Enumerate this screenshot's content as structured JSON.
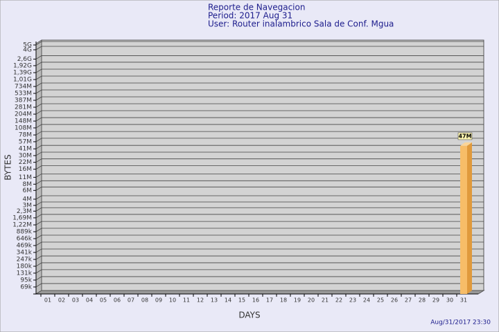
{
  "chart_data": {
    "type": "bar",
    "title": "Reporte de Navegacion",
    "subtitle": "Period: 2017 Aug 31",
    "user": "User: Router inalambrico Sala de Conf. Mgua",
    "x_label": "DAYS",
    "y_label": "BYTES",
    "footer": "Aug/31/2017 23:30",
    "categories": [
      "01",
      "02",
      "03",
      "04",
      "05",
      "06",
      "07",
      "08",
      "09",
      "10",
      "11",
      "12",
      "13",
      "14",
      "15",
      "16",
      "17",
      "18",
      "19",
      "20",
      "21",
      "22",
      "23",
      "24",
      "25",
      "26",
      "27",
      "28",
      "29",
      "30",
      "31"
    ],
    "values": [
      null,
      null,
      null,
      null,
      null,
      null,
      null,
      null,
      null,
      null,
      null,
      null,
      null,
      null,
      null,
      null,
      null,
      null,
      null,
      null,
      null,
      null,
      null,
      null,
      null,
      null,
      null,
      null,
      null,
      null,
      47000000
    ],
    "value_labels": [
      null,
      null,
      null,
      null,
      null,
      null,
      null,
      null,
      null,
      null,
      null,
      null,
      null,
      null,
      null,
      null,
      null,
      null,
      null,
      null,
      null,
      null,
      null,
      null,
      null,
      null,
      null,
      null,
      null,
      null,
      "47M"
    ],
    "color": "#f7bd68",
    "log_scale": true,
    "grid": true,
    "ylim": [
      50000,
      5000000000
    ],
    "yticks": [
      {
        "value": 69000,
        "label": "69k"
      },
      {
        "value": 95000,
        "label": "95k"
      },
      {
        "value": 131000,
        "label": "131k"
      },
      {
        "value": 180000,
        "label": "180k"
      },
      {
        "value": 247000,
        "label": "247k"
      },
      {
        "value": 341000,
        "label": "341k"
      },
      {
        "value": 469000,
        "label": "469k"
      },
      {
        "value": 646000,
        "label": "646k"
      },
      {
        "value": 889000,
        "label": "889k"
      },
      {
        "value": 1220000,
        "label": "1,22M"
      },
      {
        "value": 1690000,
        "label": "1,69M"
      },
      {
        "value": 2300000,
        "label": "2,3M"
      },
      {
        "value": 3000000,
        "label": "3M"
      },
      {
        "value": 4000000,
        "label": "4M"
      },
      {
        "value": 6000000,
        "label": "6M"
      },
      {
        "value": 8000000,
        "label": "8M"
      },
      {
        "value": 11000000,
        "label": "11M"
      },
      {
        "value": 16000000,
        "label": "16M"
      },
      {
        "value": 22000000,
        "label": "22M"
      },
      {
        "value": 30000000,
        "label": "30M"
      },
      {
        "value": 41000000,
        "label": "41M"
      },
      {
        "value": 57000000,
        "label": "57M"
      },
      {
        "value": 78000000,
        "label": "78M"
      },
      {
        "value": 108000000,
        "label": "108M"
      },
      {
        "value": 148000000,
        "label": "148M"
      },
      {
        "value": 204000000,
        "label": "204M"
      },
      {
        "value": 281000000,
        "label": "281M"
      },
      {
        "value": 387000000,
        "label": "387M"
      },
      {
        "value": 533000000,
        "label": "533M"
      },
      {
        "value": 734000000,
        "label": "734M"
      },
      {
        "value": 1010000000,
        "label": "1,01G"
      },
      {
        "value": 1390000000,
        "label": "1,39G"
      },
      {
        "value": 1920000000,
        "label": "1,92G"
      },
      {
        "value": 2600000000,
        "label": "2,6G"
      },
      {
        "value": 4000000000,
        "label": "4G"
      },
      {
        "value": 5000000000,
        "label": "5G"
      }
    ]
  }
}
